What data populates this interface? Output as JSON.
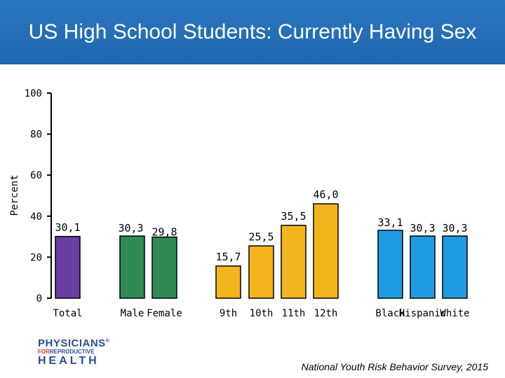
{
  "header": {
    "title": "US High School Students:  Currently Having Sex"
  },
  "logo": {
    "line1": "PHYSICIANS",
    "reg": "®",
    "line2_for": "FOR",
    "line2_rest": "REPRODUCTIVE",
    "line3": "HEALTH"
  },
  "source": "National Youth Risk Behavior Survey, 2015",
  "colors": {
    "header_bg": "#1f66ad",
    "total": "#6a3fa3",
    "sex": "#2e8b57",
    "grade": "#f2b51c",
    "race": "#1f9be4"
  },
  "chart_data": {
    "type": "bar",
    "ylabel": "Percent",
    "xlabel": "",
    "ylim": [
      0,
      100
    ],
    "yticks": [
      0,
      20,
      40,
      60,
      80,
      100
    ],
    "grid": false,
    "groups": [
      {
        "name": "total",
        "color": "#6a3fa3",
        "categories": [
          "Total"
        ],
        "values": [
          30.1
        ],
        "labels": [
          "30,1"
        ]
      },
      {
        "name": "sex",
        "color": "#2e8b57",
        "categories": [
          "Male",
          "Female"
        ],
        "values": [
          30.3,
          29.8
        ],
        "labels": [
          "30,3",
          "29,8"
        ]
      },
      {
        "name": "grade",
        "color": "#f2b51c",
        "categories": [
          "9th",
          "10th",
          "11th",
          "12th"
        ],
        "values": [
          15.7,
          25.5,
          35.5,
          46.0
        ],
        "labels": [
          "15,7",
          "25,5",
          "35,5",
          "46,0"
        ]
      },
      {
        "name": "race",
        "color": "#1f9be4",
        "categories": [
          "Black",
          "Hispanic",
          "White"
        ],
        "values": [
          33.1,
          30.3,
          30.3
        ],
        "labels": [
          "33,1",
          "30,3",
          "30,3"
        ]
      }
    ]
  }
}
